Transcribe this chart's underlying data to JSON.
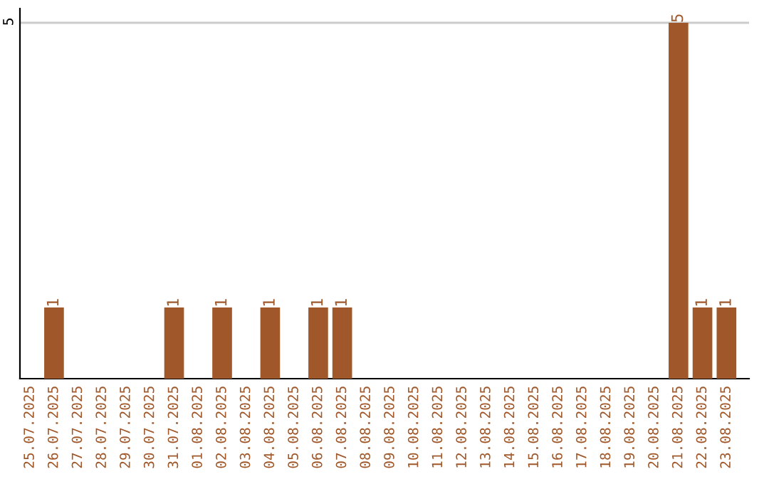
{
  "chart_data": {
    "type": "bar",
    "categories": [
      "25.07.2025",
      "26.07.2025",
      "27.07.2025",
      "28.07.2025",
      "29.07.2025",
      "30.07.2025",
      "31.07.2025",
      "01.08.2025",
      "02.08.2025",
      "03.08.2025",
      "04.08.2025",
      "05.08.2025",
      "06.08.2025",
      "07.08.2025",
      "08.08.2025",
      "09.08.2025",
      "10.08.2025",
      "11.08.2025",
      "12.08.2025",
      "13.08.2025",
      "14.08.2025",
      "15.08.2025",
      "16.08.2025",
      "17.08.2025",
      "18.08.2025",
      "19.08.2025",
      "20.08.2025",
      "21.08.2025",
      "22.08.2025",
      "23.08.2025"
    ],
    "values": [
      0,
      1,
      0,
      0,
      0,
      0,
      1,
      0,
      1,
      0,
      1,
      0,
      1,
      1,
      0,
      0,
      0,
      0,
      0,
      0,
      0,
      0,
      0,
      0,
      0,
      0,
      0,
      5,
      1,
      1
    ],
    "value_labels": [
      null,
      "1",
      null,
      null,
      null,
      null,
      "1",
      null,
      "1",
      null,
      "1",
      null,
      "1",
      "1",
      null,
      null,
      null,
      null,
      null,
      null,
      null,
      null,
      null,
      null,
      null,
      null,
      null,
      "5",
      "1",
      "1"
    ],
    "color": "#a0582a",
    "ylim": [
      0,
      5.2
    ],
    "yticks": [
      5
    ],
    "grid": "y",
    "legend": false
  }
}
